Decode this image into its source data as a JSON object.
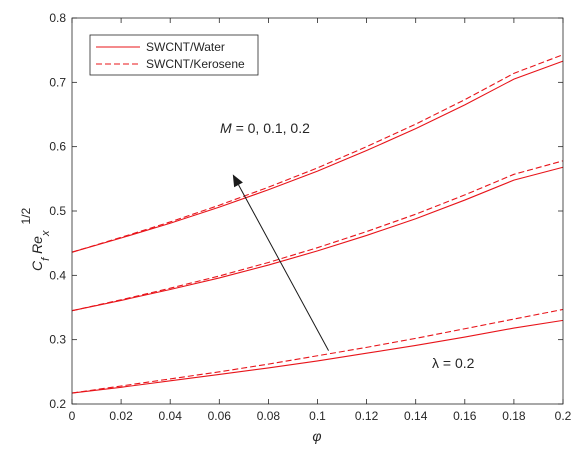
{
  "chart_data": {
    "type": "line",
    "xlabel": "φ",
    "ylabel": {
      "main": "C",
      "sub_f": "f",
      "re": " Re",
      "sub_x": "x",
      "sup": "1/2"
    },
    "xlim": [
      0,
      0.2
    ],
    "ylim": [
      0.2,
      0.8
    ],
    "xticks": [
      0,
      0.02,
      0.04,
      0.06,
      0.08,
      0.1,
      0.12,
      0.14,
      0.16,
      0.18,
      0.2
    ],
    "xtick_labels": [
      "0",
      "0.02",
      "0.04",
      "0.06",
      "0.08",
      "0.1",
      "0.12",
      "0.14",
      "0.16",
      "0.18",
      "0.2"
    ],
    "yticks": [
      0.2,
      0.3,
      0.4,
      0.5,
      0.6,
      0.7,
      0.8
    ],
    "ytick_labels": [
      "0.2",
      "0.3",
      "0.4",
      "0.5",
      "0.6",
      "0.7",
      "0.8"
    ],
    "grid": false,
    "legend_position": "top-left",
    "legend": [
      {
        "label": "SWCNT/Water",
        "style": "solid"
      },
      {
        "label": "SWCNT/Kerosene",
        "style": "dashed"
      }
    ],
    "series_color": "#e8141a",
    "x": [
      0,
      0.02,
      0.04,
      0.06,
      0.08,
      0.1,
      0.12,
      0.14,
      0.16,
      0.18,
      0.2
    ],
    "series": [
      {
        "group": "M=0.2",
        "style": "solid",
        "values": [
          0.436,
          0.458,
          0.481,
          0.506,
          0.533,
          0.562,
          0.594,
          0.628,
          0.665,
          0.705,
          0.733
        ]
      },
      {
        "group": "M=0.2",
        "style": "dashed",
        "values": [
          0.436,
          0.459,
          0.483,
          0.509,
          0.537,
          0.567,
          0.6,
          0.635,
          0.673,
          0.714,
          0.743
        ]
      },
      {
        "group": "M=0.1",
        "style": "solid",
        "values": [
          0.345,
          0.361,
          0.378,
          0.396,
          0.416,
          0.438,
          0.462,
          0.488,
          0.517,
          0.548,
          0.568
        ]
      },
      {
        "group": "M=0.1",
        "style": "dashed",
        "values": [
          0.345,
          0.362,
          0.38,
          0.399,
          0.42,
          0.443,
          0.468,
          0.495,
          0.525,
          0.557,
          0.578
        ]
      },
      {
        "group": "M=0",
        "style": "solid",
        "values": [
          0.217,
          0.226,
          0.236,
          0.246,
          0.256,
          0.267,
          0.279,
          0.291,
          0.304,
          0.318,
          0.33
        ]
      },
      {
        "group": "M=0",
        "style": "dashed",
        "values": [
          0.217,
          0.228,
          0.239,
          0.25,
          0.262,
          0.275,
          0.288,
          0.302,
          0.317,
          0.332,
          0.347
        ]
      }
    ],
    "annotations": {
      "m_label": "M = ",
      "m_values": " 0, 0.1, 0.2",
      "lambda_label": "λ = ",
      "lambda_value": " 0.2"
    },
    "arrow": {
      "from": [
        0.1045,
        0.283
      ],
      "to": [
        0.0655,
        0.557
      ]
    }
  }
}
